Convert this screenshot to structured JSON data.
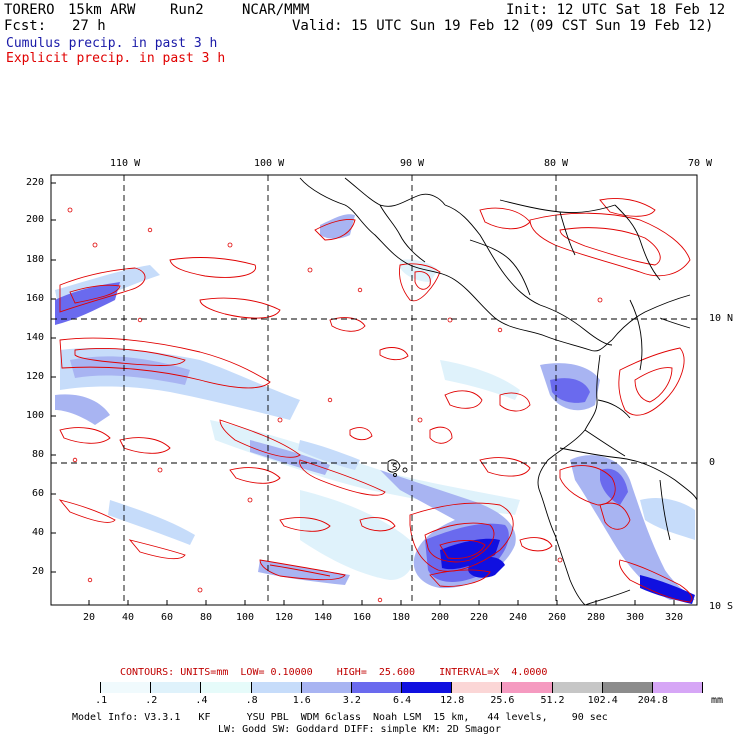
{
  "header": {
    "model": "TORERO",
    "resolution": "15km ARW",
    "run": "Run2",
    "org": "NCAR/MMM",
    "init": "Init: 12 UTC Sat 18 Feb 12",
    "fcst_label": "Fcst:",
    "fcst_value": "27 h",
    "valid": "Valid: 15 UTC Sun 19 Feb 12 (09 CST Sun 19 Feb 12)"
  },
  "legend": {
    "cumulus": "Cumulus precip. in past 3 h",
    "explicit": "Explicit precip. in past 3 h",
    "cumulus_color": "#1a1aa8",
    "explicit_color": "#e00000"
  },
  "top_axis": [
    "110 W",
    "100 W",
    "90 W",
    "80 W",
    "70 W"
  ],
  "right_axis": [
    "10 N",
    "0",
    "10 S"
  ],
  "left_axis": [
    "220",
    "200",
    "180",
    "160",
    "140",
    "120",
    "100",
    "80",
    "60",
    "40",
    "20"
  ],
  "bottom_axis": [
    "20",
    "40",
    "60",
    "80",
    "100",
    "120",
    "140",
    "160",
    "180",
    "200",
    "220",
    "240",
    "260",
    "280",
    "300",
    "320"
  ],
  "contours": {
    "text": "CONTOURS: UNITS=mm  LOW= 0.10000    HIGH=  25.600    INTERVAL=X  4.0000",
    "color": "#c00000"
  },
  "colorbar": {
    "labels": [
      ".1",
      ".2",
      ".4",
      ".8",
      "1.6",
      "3.2",
      "6.4",
      "12.8",
      "25.6",
      "51.2",
      "102.4",
      "204.8"
    ],
    "unit": "mm",
    "colors": [
      "#ffffff",
      "#f0fafd",
      "#dff2fb",
      "#e6fbfa",
      "#c6dcfa",
      "#a8b4f2",
      "#6a6aee",
      "#1010e0",
      "#fbd6d6",
      "#f59ac0",
      "#c6c6c6",
      "#8c8c8c",
      "#d6a6f6"
    ]
  },
  "footer": {
    "line1": "Model Info: V3.3.1   KF      YSU PBL  WDM 6class  Noah LSM  15 km,   44 levels,    90 sec",
    "line2": "LW: Godd SW: Goddard DIFF: simple KM: 2D Smagor"
  },
  "station_marker": "S"
}
